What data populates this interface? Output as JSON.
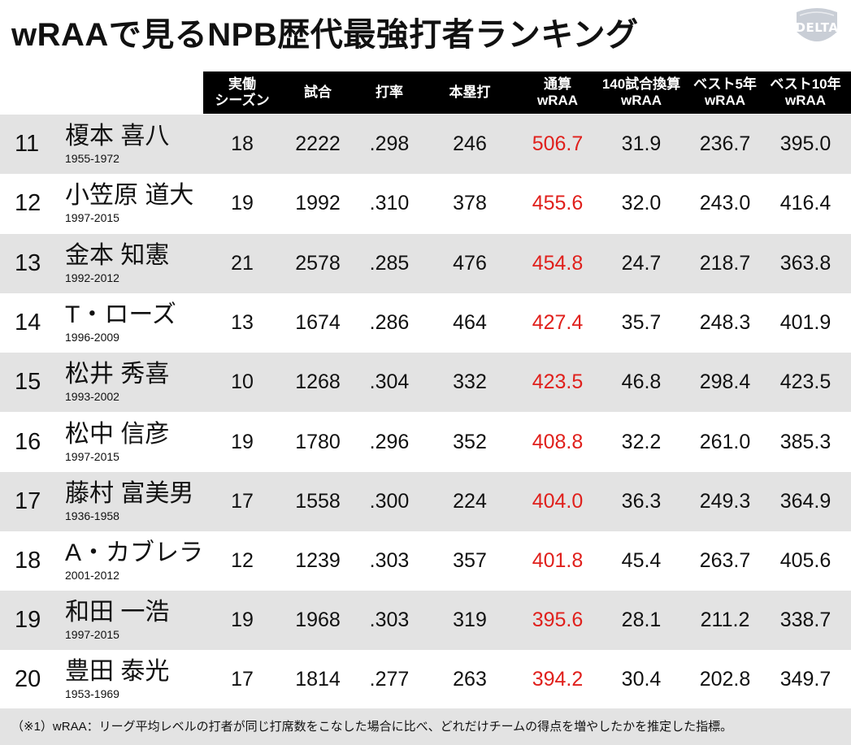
{
  "title": "wRAAで見るNPB歴代最強打者ランキング",
  "logo": {
    "text": "DELTA",
    "color": "#c9ced6"
  },
  "headers": [
    {
      "line1": "実働",
      "line2": "シーズン"
    },
    {
      "line1": "試合",
      "line2": ""
    },
    {
      "line1": "打率",
      "line2": ""
    },
    {
      "line1": "本塁打",
      "line2": ""
    },
    {
      "line1": "通算",
      "line2": "wRAA"
    },
    {
      "line1": "140試合換算",
      "line2": "wRAA"
    },
    {
      "line1": "ベスト5年",
      "line2": "wRAA"
    },
    {
      "line1": "ベスト10年",
      "line2": "wRAA"
    }
  ],
  "highlight_color": "#e0201c",
  "rows": [
    {
      "rank": "11",
      "name": "榎本 喜八",
      "years": "1955-1972",
      "seasons": "18",
      "games": "2222",
      "avg": ".298",
      "hr": "246",
      "wraa_total": "506.7",
      "wraa_140": "31.9",
      "wraa_best5": "236.7",
      "wraa_best10": "395.0"
    },
    {
      "rank": "12",
      "name": "小笠原 道大",
      "years": "1997-2015",
      "seasons": "19",
      "games": "1992",
      "avg": ".310",
      "hr": "378",
      "wraa_total": "455.6",
      "wraa_140": "32.0",
      "wraa_best5": "243.0",
      "wraa_best10": "416.4"
    },
    {
      "rank": "13",
      "name": "金本 知憲",
      "years": "1992-2012",
      "seasons": "21",
      "games": "2578",
      "avg": ".285",
      "hr": "476",
      "wraa_total": "454.8",
      "wraa_140": "24.7",
      "wraa_best5": "218.7",
      "wraa_best10": "363.8"
    },
    {
      "rank": "14",
      "name": "T・ローズ",
      "years": "1996-2009",
      "seasons": "13",
      "games": "1674",
      "avg": ".286",
      "hr": "464",
      "wraa_total": "427.4",
      "wraa_140": "35.7",
      "wraa_best5": "248.3",
      "wraa_best10": "401.9"
    },
    {
      "rank": "15",
      "name": "松井 秀喜",
      "years": "1993-2002",
      "seasons": "10",
      "games": "1268",
      "avg": ".304",
      "hr": "332",
      "wraa_total": "423.5",
      "wraa_140": "46.8",
      "wraa_best5": "298.4",
      "wraa_best10": "423.5"
    },
    {
      "rank": "16",
      "name": "松中 信彦",
      "years": "1997-2015",
      "seasons": "19",
      "games": "1780",
      "avg": ".296",
      "hr": "352",
      "wraa_total": "408.8",
      "wraa_140": "32.2",
      "wraa_best5": "261.0",
      "wraa_best10": "385.3"
    },
    {
      "rank": "17",
      "name": "藤村 富美男",
      "years": "1936-1958",
      "seasons": "17",
      "games": "1558",
      "avg": ".300",
      "hr": "224",
      "wraa_total": "404.0",
      "wraa_140": "36.3",
      "wraa_best5": "249.3",
      "wraa_best10": "364.9"
    },
    {
      "rank": "18",
      "name": "A・カブレラ",
      "years": "2001-2012",
      "seasons": "12",
      "games": "1239",
      "avg": ".303",
      "hr": "357",
      "wraa_total": "401.8",
      "wraa_140": "45.4",
      "wraa_best5": "263.7",
      "wraa_best10": "405.6"
    },
    {
      "rank": "19",
      "name": "和田 一浩",
      "years": "1997-2015",
      "seasons": "19",
      "games": "1968",
      "avg": ".303",
      "hr": "319",
      "wraa_total": "395.6",
      "wraa_140": "28.1",
      "wraa_best5": "211.2",
      "wraa_best10": "338.7"
    },
    {
      "rank": "20",
      "name": "豊田 泰光",
      "years": "1953-1969",
      "seasons": "17",
      "games": "1814",
      "avg": ".277",
      "hr": "263",
      "wraa_total": "394.2",
      "wraa_140": "30.4",
      "wraa_best5": "202.8",
      "wraa_best10": "349.7"
    }
  ],
  "footnote": "（※1）wRAA：リーグ平均レベルの打者が同じ打席数をこなした場合に比べ、どれだけチームの得点を増やしたかを推定した指標。"
}
